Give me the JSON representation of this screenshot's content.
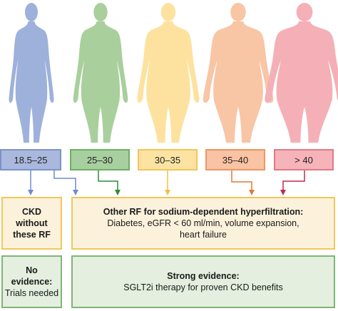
{
  "bmi_categories": [
    {
      "label": "18.5–25",
      "fill": "#a9b8dc",
      "border": "#7b93cc",
      "body": "#9eb1db"
    },
    {
      "label": "25–30",
      "fill": "#a8cf9f",
      "border": "#6daf62",
      "body": "#a9cf9d"
    },
    {
      "label": "30–35",
      "fill": "#fde3a2",
      "border": "#f3c45a",
      "body": "#fde29f"
    },
    {
      "label": "35–40",
      "fill": "#f9c3a4",
      "border": "#e99764",
      "body": "#f8c5a5"
    },
    {
      "label": "> 40",
      "fill": "#f6b3b9",
      "border": "#df7a87",
      "body": "#f4b0b6"
    }
  ],
  "panels": {
    "ckd": {
      "line1": "CKD",
      "line2": "without",
      "line3": "these RF"
    },
    "rf": {
      "title": "Other RF for sodium-dependent hyperfiltration:",
      "line1": "Diabetes, eGFR < 60 ml/min, volume expansion,",
      "line2": "heart failure"
    },
    "no_evidence": {
      "line1": "No",
      "line2": "evidence:",
      "line3": "Trials needed"
    },
    "strong": {
      "title": "Strong evidence:",
      "line1": "SGLT2i therapy for proven CKD benefits"
    }
  },
  "arrow_colors": {
    "blue": "#6f8ccc",
    "green": "#2e8b3a",
    "yellow": "#f0c040",
    "orange": "#e07a36",
    "red": "#c0294f"
  }
}
